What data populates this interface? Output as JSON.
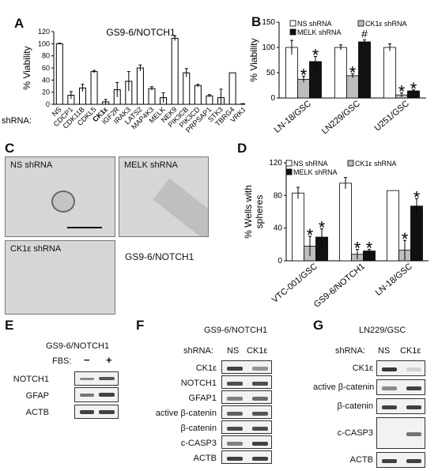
{
  "panel_letters": [
    "A",
    "B",
    "C",
    "D",
    "E",
    "F",
    "G"
  ],
  "chart_data": [
    {
      "id": "A",
      "type": "bar",
      "title": "GS9-6/NOTCH1",
      "ylabel": "% Viability",
      "xlabel_prefix": "shRNA:",
      "ylim": [
        0,
        120
      ],
      "yticks": [
        0,
        20,
        40,
        60,
        80,
        100,
        120
      ],
      "categories": [
        "NS",
        "CDCP1",
        "CDK11B",
        "CDKL5",
        "CK1ε",
        "IGF2R",
        "IRAK3",
        "LATS2",
        "MAP4K3",
        "MELK",
        "NEK9",
        "PIK3CB",
        "PIK3CD",
        "PRPSAP1",
        "STK3",
        "TBRG4",
        "VRK1"
      ],
      "bold_category": "CK1ε",
      "values": [
        100,
        15,
        27,
        54,
        4,
        24,
        38,
        60,
        26,
        11,
        109,
        52,
        31,
        14,
        11,
        52,
        1
      ],
      "errors": [
        1,
        6,
        6,
        2,
        4,
        12,
        16,
        5,
        3,
        8,
        4,
        7,
        2,
        2,
        14,
        0,
        0
      ]
    },
    {
      "id": "B",
      "type": "bar",
      "ylabel": "% Viability",
      "ylim": [
        0,
        150
      ],
      "yticks": [
        0,
        50,
        100,
        150
      ],
      "categories": [
        "LN-18/GSC",
        "LN229/GSC",
        "U251/GSC"
      ],
      "series": [
        {
          "name": "NS shRNA",
          "color": "#ffffff",
          "values": [
            100,
            100,
            100
          ],
          "errors": [
            14,
            5,
            7
          ]
        },
        {
          "name": "CK1ε shRNA",
          "color": "#bdbdbd",
          "values": [
            37,
            44,
            6
          ],
          "errors": [
            6,
            4,
            4
          ]
        },
        {
          "name": "MELK shRNA",
          "color": "#111111",
          "values": [
            72,
            111,
            14
          ],
          "errors": [
            10,
            4,
            2
          ]
        }
      ],
      "annotations": [
        {
          "category": "LN-18/GSC",
          "series": "CK1ε shRNA",
          "mark": "*"
        },
        {
          "category": "LN-18/GSC",
          "series": "MELK shRNA",
          "mark": "*"
        },
        {
          "category": "LN229/GSC",
          "series": "CK1ε shRNA",
          "mark": "*"
        },
        {
          "category": "LN229/GSC",
          "series": "MELK shRNA",
          "mark": "#"
        },
        {
          "category": "U251/GSC",
          "series": "CK1ε shRNA",
          "mark": "*"
        },
        {
          "category": "U251/GSC",
          "series": "MELK shRNA",
          "mark": "*"
        }
      ]
    },
    {
      "id": "D",
      "type": "bar",
      "ylabel_lines": [
        "% Wells with",
        "spheres"
      ],
      "ylim": [
        0,
        120
      ],
      "yticks": [
        0,
        40,
        80,
        120
      ],
      "categories": [
        "VTC-001/GSC",
        "GS9-6/NOTCH1",
        "LN-18/GSC"
      ],
      "series": [
        {
          "name": "NS shRNA",
          "color": "#ffffff",
          "values": [
            83,
            95,
            86
          ],
          "errors": [
            7,
            7,
            0
          ]
        },
        {
          "name": "CK1ε shRNA",
          "color": "#bdbdbd",
          "values": [
            18,
            8,
            13
          ],
          "errors": [
            12,
            6,
            12
          ]
        },
        {
          "name": "MELK shRNA",
          "color": "#111111",
          "values": [
            29,
            12,
            67
          ],
          "errors": [
            10,
            2,
            9
          ]
        }
      ],
      "annotations": [
        {
          "category": "VTC-001/GSC",
          "series": "CK1ε shRNA",
          "mark": "*"
        },
        {
          "category": "VTC-001/GSC",
          "series": "MELK shRNA",
          "mark": "*"
        },
        {
          "category": "GS9-6/NOTCH1",
          "series": "CK1ε shRNA",
          "mark": "*"
        },
        {
          "category": "GS9-6/NOTCH1",
          "series": "MELK shRNA",
          "mark": "*"
        },
        {
          "category": "LN-18/GSC",
          "series": "CK1ε shRNA",
          "mark": "*"
        },
        {
          "category": "LN-18/GSC",
          "series": "MELK shRNA",
          "mark": "*"
        }
      ]
    }
  ],
  "panel_c": {
    "images": [
      "NS shRNA",
      "MELK shRNA",
      "CK1ε shRNA"
    ],
    "caption": "GS9-6/NOTCH1"
  },
  "panel_e": {
    "title": "GS9-6/NOTCH1",
    "condition_label": "FBS:",
    "conditions": [
      "−",
      "+"
    ],
    "rows": [
      "NOTCH1",
      "GFAP",
      "ACTB"
    ]
  },
  "panel_f": {
    "title": "GS9-6/NOTCH1",
    "condition_label": "shRNA:",
    "conditions": [
      "NS",
      "CK1ε"
    ],
    "rows": [
      "CK1ε",
      "NOTCH1",
      "GFAP1",
      "active β-catenin",
      "β-catenin",
      "c-CASP3",
      "ACTB"
    ]
  },
  "panel_g": {
    "title": "LN229/GSC",
    "condition_label": "shRNA:",
    "conditions": [
      "NS",
      "CK1ε"
    ],
    "rows": [
      "CK1ε",
      "active β-catenin",
      "β-catenin",
      "c-CASP3",
      "ACTB"
    ]
  }
}
